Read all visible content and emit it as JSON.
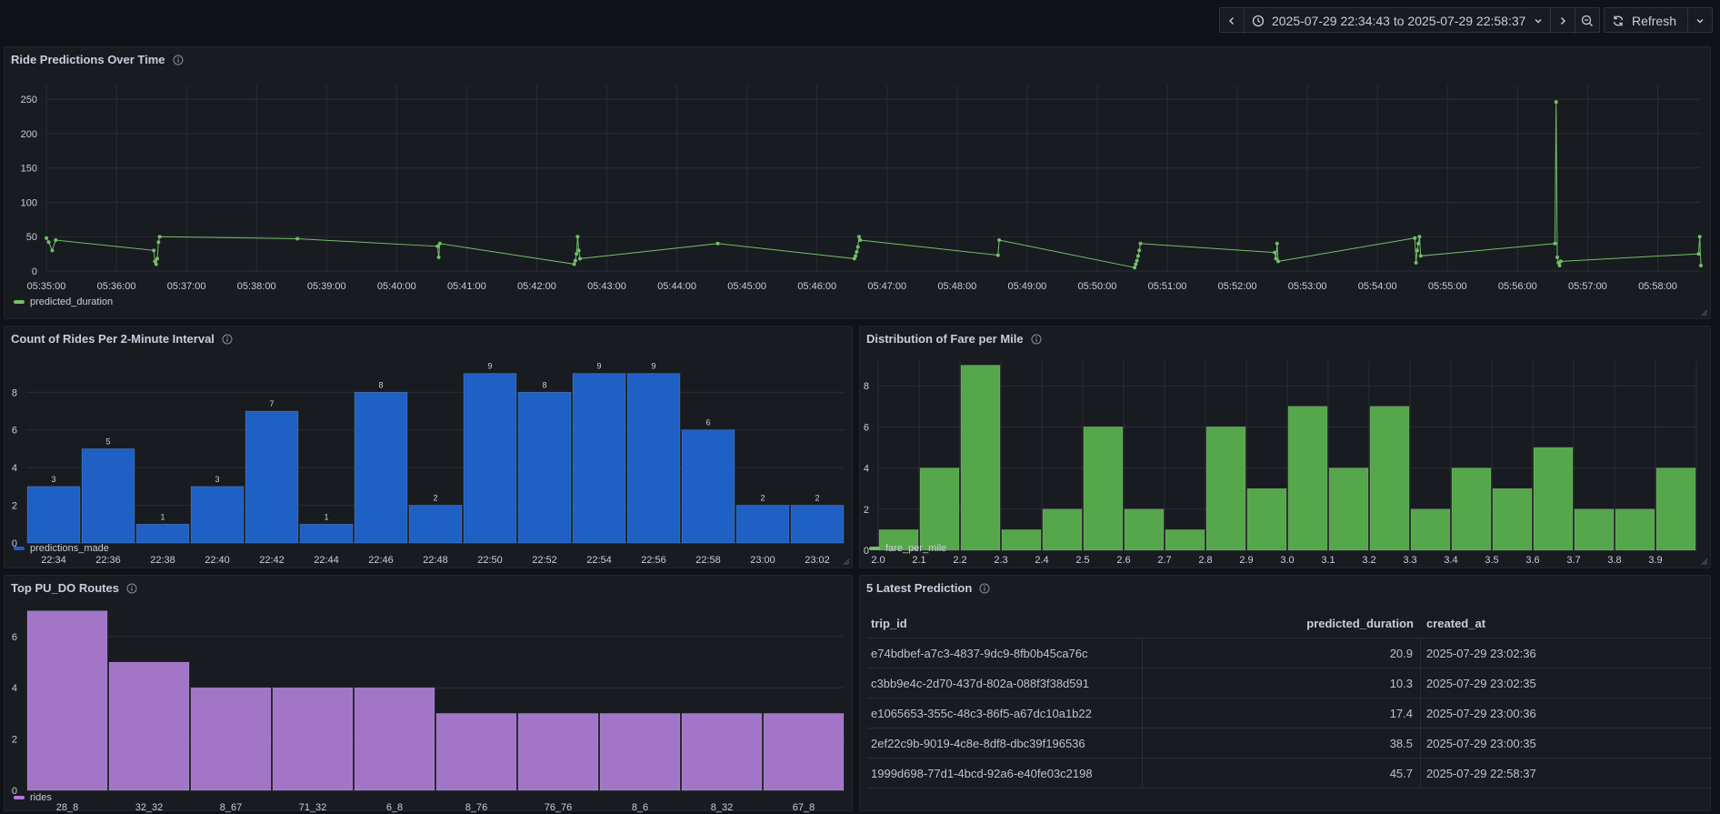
{
  "toolbar": {
    "time_range": "2025-07-29 22:34:43 to 2025-07-29 22:58:37",
    "refresh_label": "Refresh",
    "icons": [
      "chevron-left-icon",
      "clock-icon",
      "chevron-down-icon",
      "chevron-right-icon",
      "zoom-out-icon",
      "refresh-icon",
      "chevron-down-icon"
    ]
  },
  "colors": {
    "green": "#73bf69",
    "blue": "#1f60c4",
    "purple": "#b877d9",
    "bg": "#111217",
    "panel": "#181b1f"
  },
  "panels": {
    "ride_predictions": {
      "title": "Ride Predictions Over Time",
      "legend": "predicted_duration"
    },
    "count_rides": {
      "title": "Count of Rides Per 2-Minute Interval",
      "legend": "predictions_made"
    },
    "fare_dist": {
      "title": "Distribution of Fare per Mile",
      "legend": "fare_per_mile"
    },
    "top_routes": {
      "title": "Top PU_DO Routes",
      "legend": "rides"
    },
    "latest": {
      "title": "5 Latest Prediction"
    }
  },
  "table": {
    "columns": [
      "trip_id",
      "predicted_duration",
      "created_at"
    ],
    "rows": [
      [
        "e74bdbef-a7c3-4837-9dc9-8fb0b45ca76c",
        "20.9",
        "2025-07-29 23:02:36"
      ],
      [
        "c3bb9e4c-2d70-437d-802a-088f3f38d591",
        "10.3",
        "2025-07-29 23:02:35"
      ],
      [
        "e1065653-355c-48c3-86f5-a67dc10a1b22",
        "17.4",
        "2025-07-29 23:00:36"
      ],
      [
        "2ef22c9b-9019-4c8e-8df8-dbc39f196536",
        "38.5",
        "2025-07-29 23:00:35"
      ],
      [
        "1999d698-77d1-4bcd-92a6-e40fe03c2198",
        "45.7",
        "2025-07-29 22:58:37"
      ]
    ]
  },
  "chart_data": [
    {
      "type": "line",
      "title": "Ride Predictions Over Time",
      "series": [
        {
          "name": "predicted_duration",
          "points": [
            [
              "05:35:00",
              48
            ],
            [
              "05:35:02",
              42
            ],
            [
              "05:35:05",
              30
            ],
            [
              "05:35:08",
              45
            ],
            [
              "05:36:32",
              30
            ],
            [
              "05:36:33",
              14
            ],
            [
              "05:36:34",
              10
            ],
            [
              "05:36:35",
              18
            ],
            [
              "05:36:36",
              42
            ],
            [
              "05:36:37",
              50
            ],
            [
              "05:38:35",
              47
            ],
            [
              "05:40:35",
              36
            ],
            [
              "05:40:36",
              20
            ],
            [
              "05:40:37",
              40
            ],
            [
              "05:42:32",
              10
            ],
            [
              "05:42:33",
              15
            ],
            [
              "05:42:34",
              25
            ],
            [
              "05:42:35",
              50
            ],
            [
              "05:42:36",
              30
            ],
            [
              "05:42:37",
              18
            ],
            [
              "05:44:35",
              40
            ],
            [
              "05:46:32",
              18
            ],
            [
              "05:46:33",
              22
            ],
            [
              "05:46:34",
              28
            ],
            [
              "05:46:35",
              35
            ],
            [
              "05:46:36",
              50
            ],
            [
              "05:46:37",
              45
            ],
            [
              "05:48:35",
              23
            ],
            [
              "05:48:36",
              45
            ],
            [
              "05:50:32",
              5
            ],
            [
              "05:50:33",
              10
            ],
            [
              "05:50:34",
              15
            ],
            [
              "05:50:35",
              22
            ],
            [
              "05:50:36",
              30
            ],
            [
              "05:50:37",
              40
            ],
            [
              "05:52:32",
              27
            ],
            [
              "05:52:33",
              18
            ],
            [
              "05:52:34",
              40
            ],
            [
              "05:52:35",
              14
            ],
            [
              "05:54:32",
              48
            ],
            [
              "05:54:33",
              12
            ],
            [
              "05:54:34",
              30
            ],
            [
              "05:54:35",
              40
            ],
            [
              "05:54:36",
              50
            ],
            [
              "05:54:37",
              22
            ],
            [
              "05:56:32",
              40
            ],
            [
              "05:56:33",
              246
            ],
            [
              "05:56:34",
              20
            ],
            [
              "05:56:35",
              12
            ],
            [
              "05:56:36",
              8
            ],
            [
              "05:56:37",
              14
            ],
            [
              "05:58:35",
              25
            ],
            [
              "05:58:36",
              50
            ],
            [
              "05:58:37",
              8
            ]
          ]
        }
      ],
      "x_ticks": [
        "05:35:00",
        "05:36:00",
        "05:37:00",
        "05:38:00",
        "05:39:00",
        "05:40:00",
        "05:41:00",
        "05:42:00",
        "05:43:00",
        "05:44:00",
        "05:45:00",
        "05:46:00",
        "05:47:00",
        "05:48:00",
        "05:49:00",
        "05:50:00",
        "05:51:00",
        "05:52:00",
        "05:53:00",
        "05:54:00",
        "05:55:00",
        "05:56:00",
        "05:57:00",
        "05:58:00"
      ],
      "y_ticks": [
        0,
        50,
        100,
        150,
        200,
        250
      ],
      "ylim": [
        0,
        270
      ]
    },
    {
      "type": "bar",
      "title": "Count of Rides Per 2-Minute Interval",
      "categories": [
        "22:34",
        "22:36",
        "22:38",
        "22:40",
        "22:42",
        "22:44",
        "22:46",
        "22:48",
        "22:50",
        "22:52",
        "22:54",
        "22:56",
        "22:58",
        "23:00",
        "23:02"
      ],
      "series": [
        {
          "name": "predictions_made",
          "values": [
            3,
            5,
            1,
            3,
            7,
            1,
            8,
            2,
            9,
            8,
            9,
            9,
            6,
            2,
            2
          ]
        }
      ],
      "y_ticks": [
        0,
        2,
        4,
        6,
        8
      ],
      "ylim": [
        0,
        9.8
      ]
    },
    {
      "type": "bar",
      "title": "Distribution of Fare per Mile",
      "bin_edges": [
        2.0,
        2.1,
        2.2,
        2.3,
        2.4,
        2.5,
        2.6,
        2.7,
        2.8,
        2.9,
        3.0,
        3.1,
        3.2,
        3.3,
        3.4,
        3.5,
        3.6,
        3.7,
        3.8,
        3.9,
        4.0
      ],
      "series": [
        {
          "name": "fare_per_mile",
          "values": [
            1,
            4,
            9,
            1,
            2,
            6,
            2,
            1,
            6,
            3,
            7,
            4,
            7,
            2,
            4,
            3,
            5,
            2,
            2,
            4
          ]
        }
      ],
      "x_ticks": [
        "2.0",
        "2.1",
        "2.2",
        "2.3",
        "2.4",
        "2.5",
        "2.6",
        "2.7",
        "2.8",
        "2.9",
        "3.0",
        "3.1",
        "3.2",
        "3.3",
        "3.4",
        "3.5",
        "3.6",
        "3.7",
        "3.8",
        "3.9"
      ],
      "y_ticks": [
        0,
        2,
        4,
        6,
        8
      ],
      "ylim": [
        0,
        9.2
      ]
    },
    {
      "type": "bar",
      "title": "Top PU_DO Routes",
      "categories": [
        "28_8",
        "32_32",
        "8_67",
        "71_32",
        "6_8",
        "8_76",
        "76_76",
        "8_6",
        "8_32",
        "67_8"
      ],
      "series": [
        {
          "name": "rides",
          "values": [
            7,
            5,
            4,
            4,
            4,
            3,
            3,
            3,
            3,
            3
          ]
        }
      ],
      "y_ticks": [
        0,
        2,
        4,
        6
      ],
      "ylim": [
        0,
        7.2
      ]
    }
  ]
}
